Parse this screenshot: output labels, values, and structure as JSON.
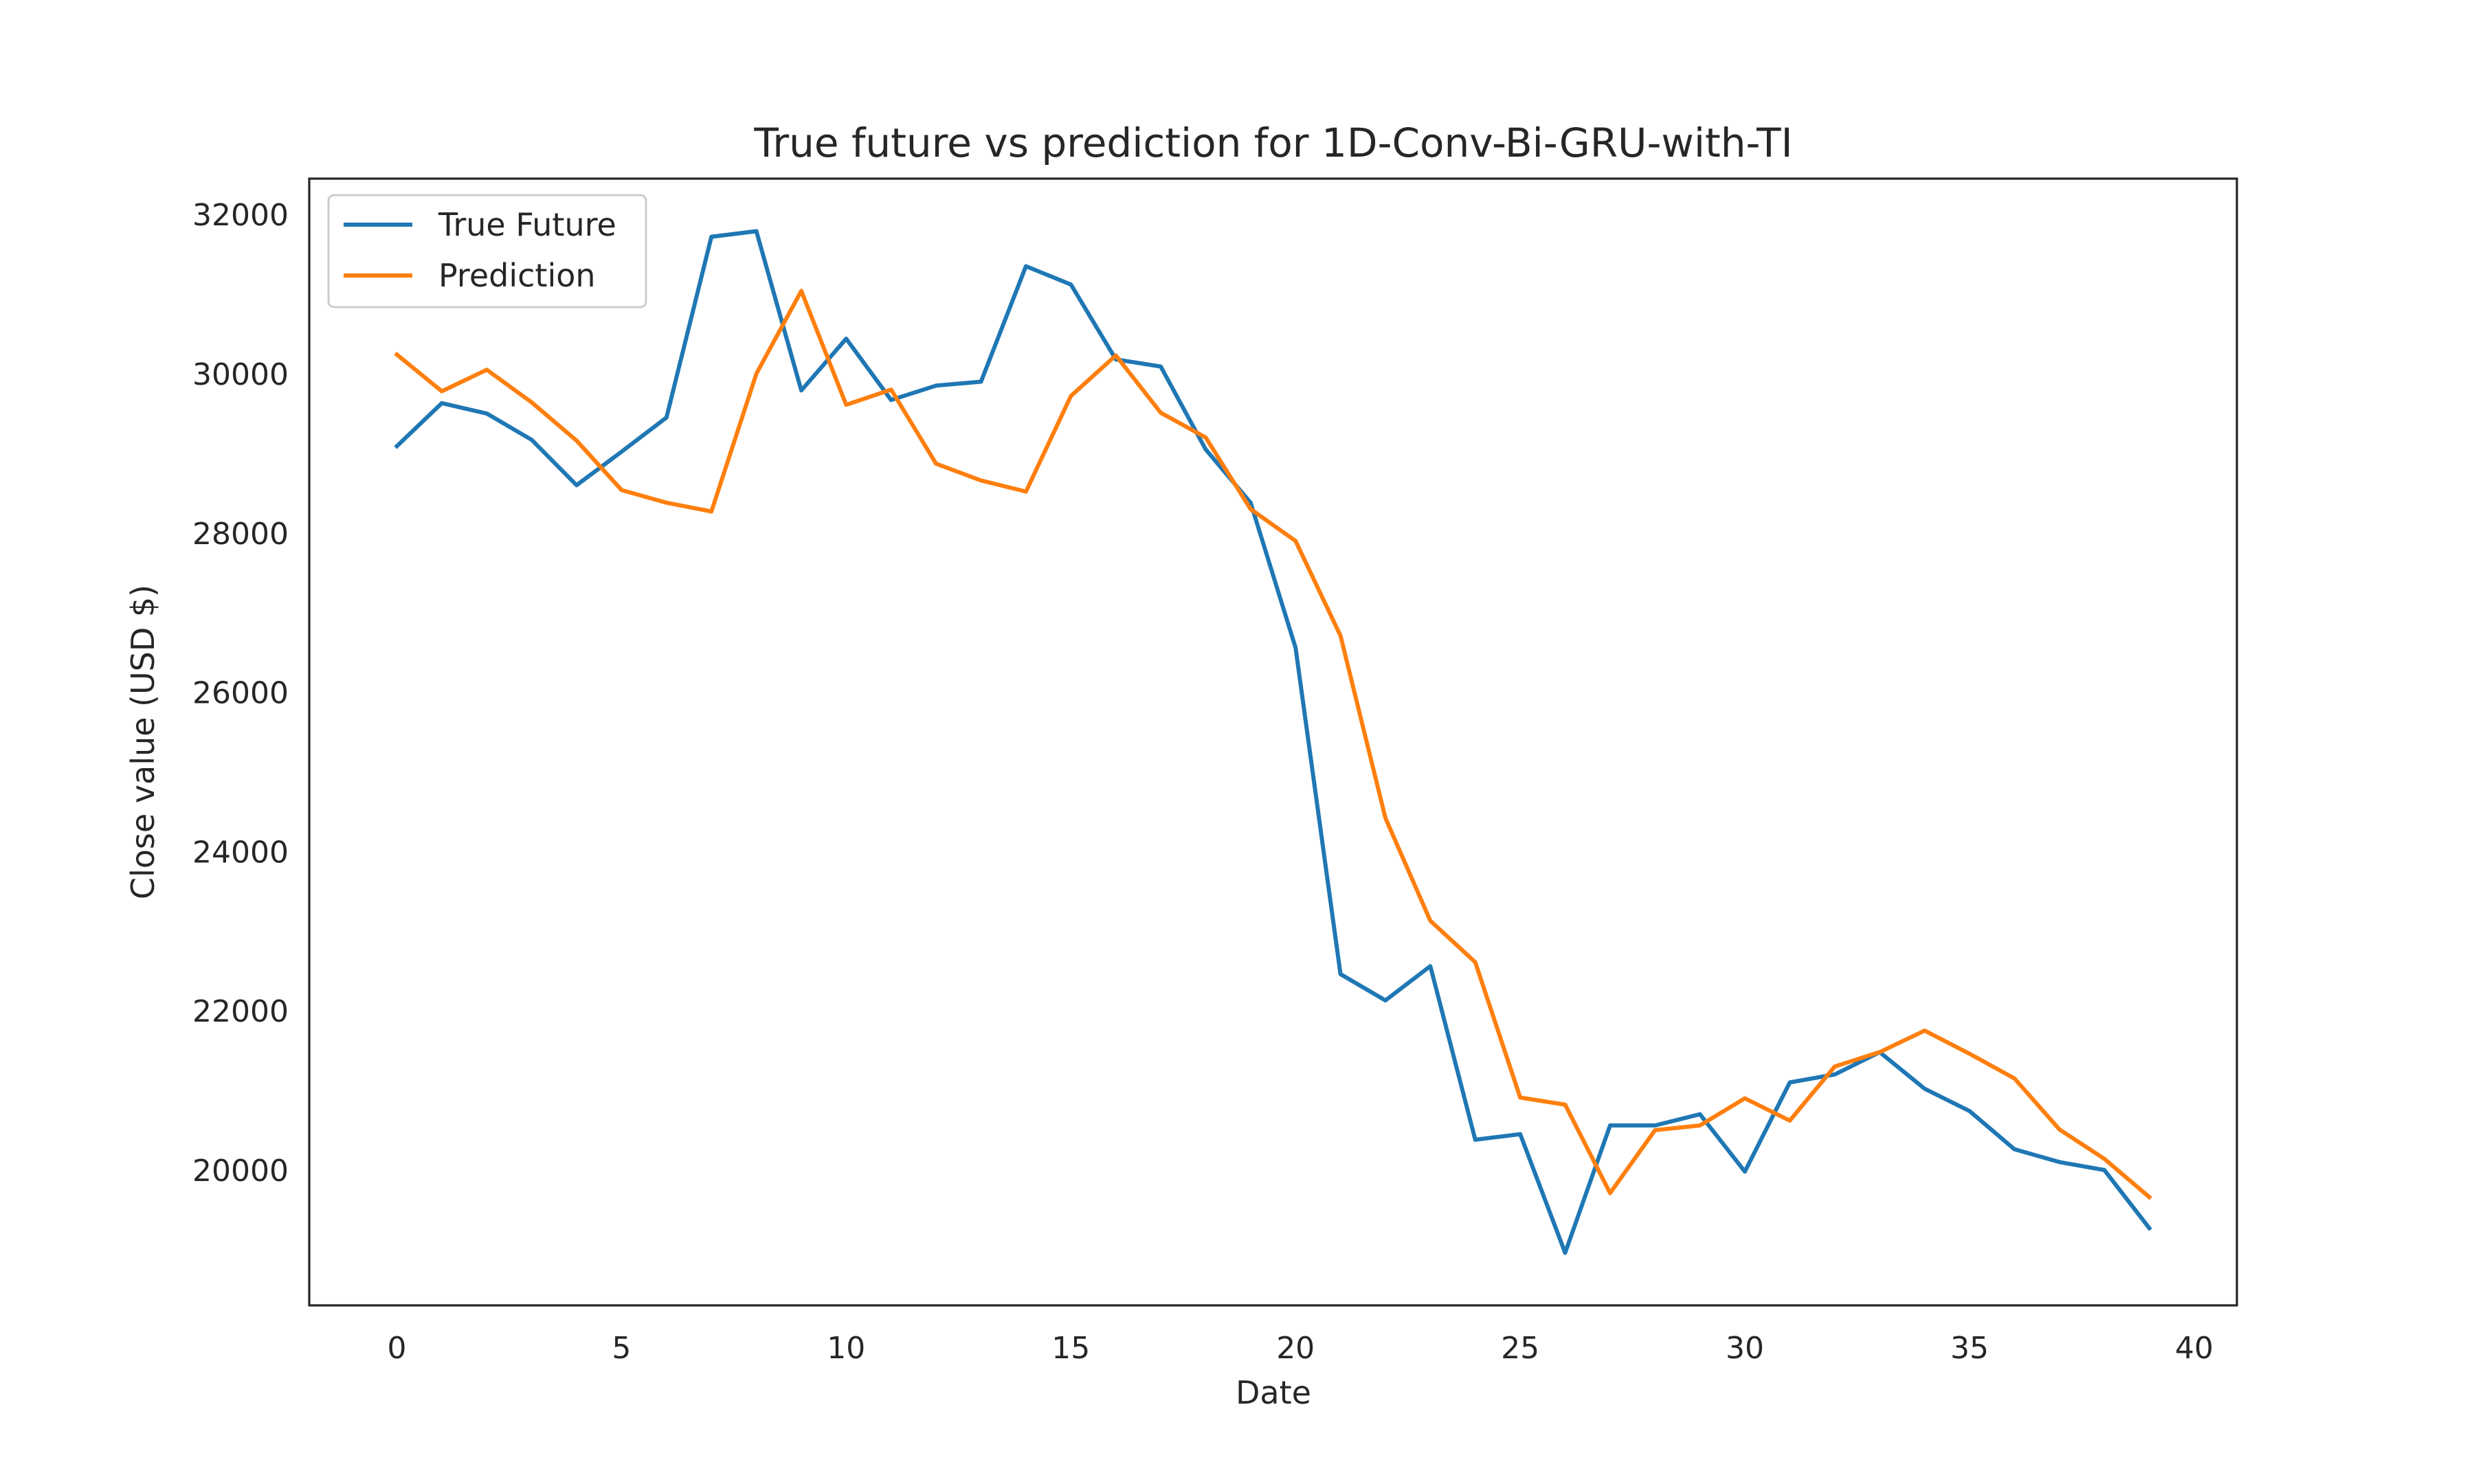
{
  "chart_data": {
    "type": "line",
    "title": "True future vs prediction for 1D-Conv-Bi-GRU-with-TI",
    "xlabel": "Date",
    "ylabel": "Close value (USD $)",
    "xlim": [
      -1.95,
      40.95
    ],
    "ylim": [
      18300,
      32450
    ],
    "xticks": [
      0,
      5,
      10,
      15,
      20,
      25,
      30,
      35,
      40
    ],
    "yticks": [
      20000,
      22000,
      24000,
      26000,
      28000,
      30000,
      32000
    ],
    "grid": false,
    "legend_position": "upper-left",
    "x": [
      0,
      1,
      2,
      3,
      4,
      5,
      6,
      7,
      8,
      9,
      10,
      11,
      12,
      13,
      14,
      15,
      16,
      17,
      18,
      19,
      20,
      21,
      22,
      23,
      24,
      25,
      26,
      27,
      28,
      29,
      30,
      31,
      32,
      33,
      34,
      35,
      36,
      37,
      38,
      39
    ],
    "series": [
      {
        "name": "True Future",
        "color": "#1f77b4",
        "values": [
          29090,
          29630,
          29500,
          29170,
          28600,
          29020,
          29450,
          31720,
          31790,
          29790,
          30440,
          29670,
          29850,
          29900,
          31350,
          31120,
          30180,
          30090,
          29050,
          28380,
          26560,
          22460,
          22130,
          22560,
          20380,
          20450,
          18960,
          20560,
          20560,
          20700,
          19980,
          21100,
          21200,
          21480,
          21020,
          20740,
          20260,
          20100,
          20000,
          19270
        ]
      },
      {
        "name": "Prediction",
        "color": "#ff7f0e",
        "values": [
          30240,
          29780,
          30050,
          29640,
          29160,
          28540,
          28380,
          28270,
          30000,
          31040,
          29610,
          29800,
          28870,
          28660,
          28520,
          29720,
          30230,
          29510,
          29200,
          28300,
          27900,
          26710,
          24420,
          23130,
          22610,
          20910,
          20820,
          19710,
          20500,
          20560,
          20900,
          20620,
          21300,
          21480,
          21750,
          21460,
          21150,
          20510,
          20140,
          19660
        ]
      }
    ]
  }
}
